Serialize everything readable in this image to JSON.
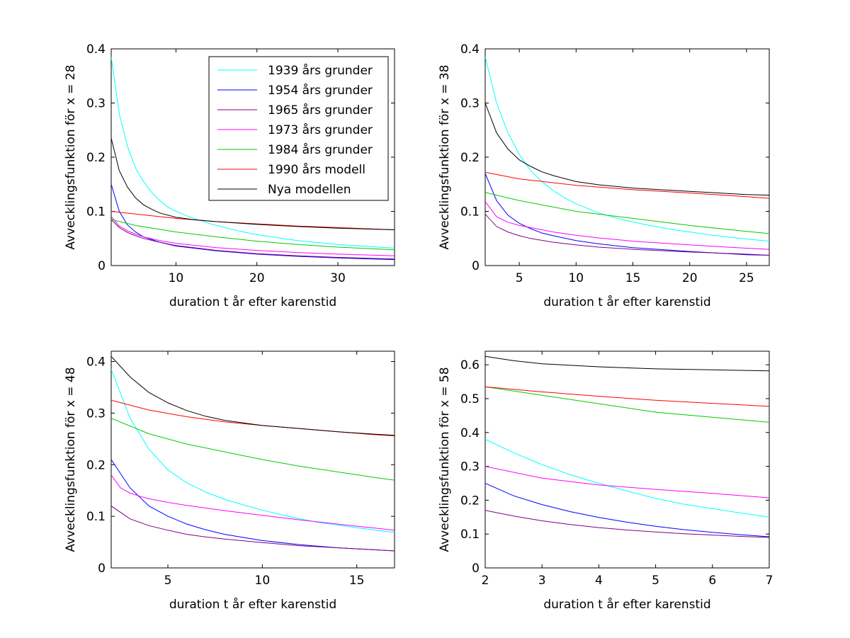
{
  "chart_data": [
    {
      "type": "line",
      "xlabel": "duration t år efter karenstid",
      "ylabel": "Avvecklingsfunktion för x = 28",
      "xlim": [
        2,
        37
      ],
      "ylim": [
        0,
        0.4
      ],
      "xticks": [
        10,
        20,
        30
      ],
      "yticks": [
        0,
        0.1,
        0.2,
        0.3,
        0.4
      ],
      "legend": "top-right",
      "series": [
        {
          "name": "1939 års grunder",
          "color": "#00ffff",
          "x": [
            2,
            3,
            4,
            5,
            6,
            7,
            8,
            9,
            10,
            12,
            14,
            16,
            18,
            20,
            25,
            30,
            37
          ],
          "y": [
            0.385,
            0.28,
            0.22,
            0.18,
            0.155,
            0.135,
            0.12,
            0.108,
            0.1,
            0.088,
            0.078,
            0.07,
            0.063,
            0.057,
            0.046,
            0.039,
            0.032
          ]
        },
        {
          "name": "1954 års grunder",
          "color": "#0000ff",
          "x": [
            2,
            3,
            4,
            5,
            6,
            8,
            10,
            15,
            20,
            25,
            30,
            37
          ],
          "y": [
            0.15,
            0.1,
            0.075,
            0.062,
            0.053,
            0.043,
            0.036,
            0.027,
            0.021,
            0.017,
            0.014,
            0.011
          ]
        },
        {
          "name": "1965 års grunder",
          "color": "#800080",
          "x": [
            2,
            3,
            4,
            5,
            6,
            8,
            10,
            15,
            20,
            25,
            30,
            37
          ],
          "y": [
            0.085,
            0.07,
            0.061,
            0.055,
            0.05,
            0.043,
            0.037,
            0.028,
            0.022,
            0.018,
            0.015,
            0.012
          ]
        },
        {
          "name": "1973 års grunder",
          "color": "#ff00ff",
          "x": [
            2,
            3,
            4,
            5,
            6,
            8,
            10,
            15,
            20,
            25,
            30,
            37
          ],
          "y": [
            0.09,
            0.073,
            0.064,
            0.058,
            0.053,
            0.046,
            0.041,
            0.033,
            0.028,
            0.024,
            0.021,
            0.018
          ]
        },
        {
          "name": "1984 års grunder",
          "color": "#00cc00",
          "x": [
            2,
            5,
            10,
            15,
            20,
            25,
            30,
            37
          ],
          "y": [
            0.085,
            0.074,
            0.062,
            0.053,
            0.045,
            0.039,
            0.034,
            0.029
          ]
        },
        {
          "name": "1990 års modell",
          "color": "#ff0000",
          "x": [
            2,
            5,
            10,
            15,
            20,
            25,
            30,
            37
          ],
          "y": [
            0.1,
            0.095,
            0.087,
            0.081,
            0.077,
            0.073,
            0.07,
            0.066
          ]
        },
        {
          "name": "Nya modellen",
          "color": "#000000",
          "x": [
            2,
            3,
            4,
            5,
            6,
            7,
            8,
            10,
            12,
            15,
            20,
            25,
            30,
            37
          ],
          "y": [
            0.235,
            0.175,
            0.145,
            0.125,
            0.112,
            0.104,
            0.097,
            0.089,
            0.085,
            0.081,
            0.076,
            0.072,
            0.069,
            0.066
          ]
        }
      ]
    },
    {
      "type": "line",
      "xlabel": "duration t år efter karenstid",
      "ylabel": "Avvecklingsfunktion för x = 38",
      "xlim": [
        2,
        27
      ],
      "ylim": [
        0,
        0.4
      ],
      "xticks": [
        5,
        10,
        15,
        20,
        25
      ],
      "yticks": [
        0,
        0.1,
        0.2,
        0.3,
        0.4
      ],
      "series": [
        {
          "name": "1939 års grunder",
          "color": "#00ffff",
          "x": [
            2,
            3,
            4,
            5,
            6,
            7,
            8,
            9,
            10,
            12,
            14,
            16,
            18,
            20,
            22,
            25,
            27
          ],
          "y": [
            0.385,
            0.3,
            0.245,
            0.205,
            0.175,
            0.155,
            0.138,
            0.125,
            0.114,
            0.097,
            0.085,
            0.076,
            0.068,
            0.062,
            0.056,
            0.049,
            0.045
          ]
        },
        {
          "name": "1954 års grunder",
          "color": "#0000ff",
          "x": [
            2,
            3,
            4,
            5,
            6,
            7,
            8,
            10,
            12,
            15,
            20,
            25,
            27
          ],
          "y": [
            0.17,
            0.12,
            0.093,
            0.078,
            0.068,
            0.06,
            0.055,
            0.046,
            0.04,
            0.033,
            0.026,
            0.02,
            0.019
          ]
        },
        {
          "name": "1965 års grunder",
          "color": "#800080",
          "x": [
            2,
            3,
            4,
            5,
            6,
            8,
            10,
            12,
            15,
            20,
            25,
            27
          ],
          "y": [
            0.095,
            0.072,
            0.062,
            0.055,
            0.05,
            0.043,
            0.038,
            0.034,
            0.03,
            0.025,
            0.021,
            0.019
          ]
        },
        {
          "name": "1973 års grunder",
          "color": "#ff00ff",
          "x": [
            2,
            3,
            4,
            5,
            6,
            8,
            10,
            12,
            15,
            20,
            25,
            27
          ],
          "y": [
            0.118,
            0.09,
            0.08,
            0.074,
            0.07,
            0.062,
            0.056,
            0.051,
            0.045,
            0.038,
            0.032,
            0.03
          ]
        },
        {
          "name": "1984 års grunder",
          "color": "#00cc00",
          "x": [
            2,
            5,
            10,
            15,
            20,
            25,
            27
          ],
          "y": [
            0.135,
            0.12,
            0.1,
            0.087,
            0.074,
            0.063,
            0.059
          ]
        },
        {
          "name": "1990 års modell",
          "color": "#ff0000",
          "x": [
            2,
            5,
            10,
            15,
            20,
            25,
            27
          ],
          "y": [
            0.172,
            0.16,
            0.148,
            0.14,
            0.134,
            0.127,
            0.124
          ]
        },
        {
          "name": "Nya modellen",
          "color": "#000000",
          "x": [
            2,
            3,
            4,
            5,
            6,
            7,
            8,
            10,
            12,
            15,
            20,
            25,
            27
          ],
          "y": [
            0.3,
            0.245,
            0.215,
            0.195,
            0.183,
            0.173,
            0.166,
            0.155,
            0.149,
            0.143,
            0.137,
            0.131,
            0.13
          ]
        }
      ]
    },
    {
      "type": "line",
      "xlabel": "duration t år efter karenstid",
      "ylabel": "Avvecklingsfunktion för x = 48",
      "xlim": [
        2,
        17
      ],
      "ylim": [
        0,
        0.42
      ],
      "xticks": [
        5,
        10,
        15
      ],
      "yticks": [
        0,
        0.1,
        0.2,
        0.3,
        0.4
      ],
      "series": [
        {
          "name": "1939 års grunder",
          "color": "#00ffff",
          "x": [
            2,
            3,
            4,
            5,
            6,
            7,
            8,
            9,
            10,
            11,
            12,
            13,
            14,
            15,
            16,
            17
          ],
          "y": [
            0.385,
            0.29,
            0.23,
            0.19,
            0.165,
            0.147,
            0.133,
            0.122,
            0.112,
            0.103,
            0.095,
            0.088,
            0.083,
            0.078,
            0.073,
            0.069
          ]
        },
        {
          "name": "1954 års grunder",
          "color": "#0000ff",
          "x": [
            2,
            3,
            4,
            5,
            6,
            7,
            8,
            10,
            12,
            14,
            16,
            17
          ],
          "y": [
            0.21,
            0.155,
            0.12,
            0.1,
            0.085,
            0.074,
            0.065,
            0.053,
            0.045,
            0.039,
            0.035,
            0.033
          ]
        },
        {
          "name": "1965 års grunder",
          "color": "#800080",
          "x": [
            2,
            3,
            4,
            5,
            6,
            7,
            8,
            10,
            12,
            14,
            16,
            17
          ],
          "y": [
            0.12,
            0.095,
            0.082,
            0.073,
            0.065,
            0.06,
            0.056,
            0.049,
            0.043,
            0.039,
            0.035,
            0.033
          ]
        },
        {
          "name": "1973 års grunder",
          "color": "#ff00ff",
          "x": [
            2,
            2.5,
            3,
            3.5,
            4,
            5,
            6,
            8,
            10,
            12,
            14,
            16,
            17
          ],
          "y": [
            0.18,
            0.155,
            0.145,
            0.139,
            0.134,
            0.127,
            0.121,
            0.111,
            0.102,
            0.093,
            0.085,
            0.077,
            0.073
          ]
        },
        {
          "name": "1984 års grunder",
          "color": "#00cc00",
          "x": [
            2,
            4,
            6,
            8,
            10,
            12,
            14,
            16,
            17
          ],
          "y": [
            0.29,
            0.26,
            0.24,
            0.225,
            0.21,
            0.197,
            0.186,
            0.175,
            0.17
          ]
        },
        {
          "name": "1990 års modell",
          "color": "#ff0000",
          "x": [
            2,
            4,
            6,
            8,
            10,
            12,
            14,
            16,
            17
          ],
          "y": [
            0.325,
            0.306,
            0.293,
            0.283,
            0.276,
            0.27,
            0.264,
            0.258,
            0.256
          ]
        },
        {
          "name": "Nya modellen",
          "color": "#000000",
          "x": [
            2,
            3,
            4,
            5,
            6,
            7,
            8,
            10,
            12,
            14,
            16,
            17
          ],
          "y": [
            0.41,
            0.37,
            0.34,
            0.32,
            0.305,
            0.294,
            0.286,
            0.276,
            0.27,
            0.264,
            0.259,
            0.257
          ]
        }
      ]
    },
    {
      "type": "line",
      "xlabel": "duration t år efter karenstid",
      "ylabel": "Avvecklingsfunktion för x = 58",
      "xlim": [
        2,
        7
      ],
      "ylim": [
        0,
        0.64
      ],
      "xticks": [
        2,
        3,
        4,
        5,
        6,
        7
      ],
      "yticks": [
        0,
        0.1,
        0.2,
        0.3,
        0.4,
        0.5,
        0.6
      ],
      "series": [
        {
          "name": "1939 års grunder",
          "color": "#00ffff",
          "x": [
            2,
            2.5,
            3,
            3.5,
            4,
            4.5,
            5,
            5.5,
            6,
            6.5,
            7
          ],
          "y": [
            0.38,
            0.34,
            0.305,
            0.275,
            0.25,
            0.227,
            0.205,
            0.188,
            0.175,
            0.162,
            0.15
          ]
        },
        {
          "name": "1954 års grunder",
          "color": "#0000ff",
          "x": [
            2,
            2.5,
            3,
            3.5,
            4,
            4.5,
            5,
            5.5,
            6,
            6.5,
            7
          ],
          "y": [
            0.25,
            0.213,
            0.187,
            0.166,
            0.149,
            0.135,
            0.123,
            0.113,
            0.105,
            0.098,
            0.092
          ]
        },
        {
          "name": "1965 års grunder",
          "color": "#800080",
          "x": [
            2,
            2.5,
            3,
            3.5,
            4,
            4.5,
            5,
            5.5,
            6,
            6.5,
            7
          ],
          "y": [
            0.17,
            0.153,
            0.139,
            0.128,
            0.119,
            0.112,
            0.106,
            0.101,
            0.097,
            0.093,
            0.09
          ]
        },
        {
          "name": "1973 års grunder",
          "color": "#ff00ff",
          "x": [
            2,
            3,
            4,
            5,
            6,
            7
          ],
          "y": [
            0.3,
            0.265,
            0.245,
            0.232,
            0.22,
            0.207
          ]
        },
        {
          "name": "1984 års grunder",
          "color": "#00cc00",
          "x": [
            2,
            3,
            4,
            5,
            6,
            7
          ],
          "y": [
            0.535,
            0.51,
            0.485,
            0.46,
            0.445,
            0.43
          ]
        },
        {
          "name": "1990 års modell",
          "color": "#ff0000",
          "x": [
            2,
            3,
            4,
            5,
            6,
            7
          ],
          "y": [
            0.535,
            0.52,
            0.507,
            0.495,
            0.486,
            0.477
          ]
        },
        {
          "name": "Nya modellen",
          "color": "#000000",
          "x": [
            2,
            2.5,
            3,
            4,
            5,
            6,
            7
          ],
          "y": [
            0.625,
            0.612,
            0.603,
            0.594,
            0.588,
            0.585,
            0.582
          ]
        }
      ]
    }
  ]
}
